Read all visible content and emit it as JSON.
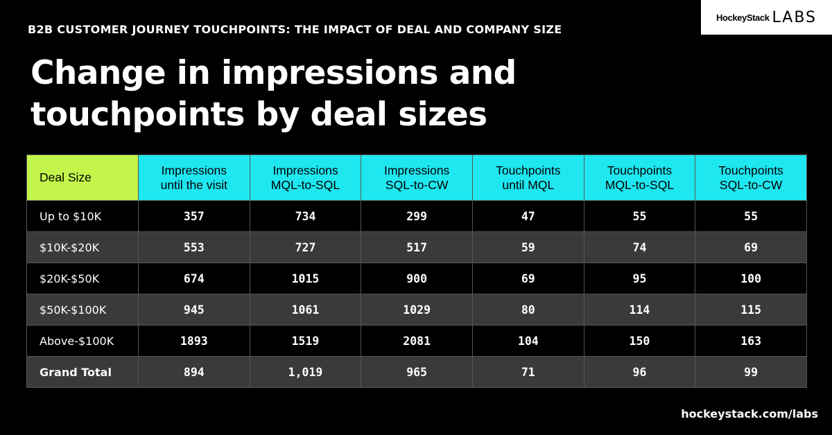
{
  "header": {
    "eyebrow": "B2B CUSTOMER JOURNEY TOUCHPOINTS: THE IMPACT OF DEAL AND COMPANY SIZE",
    "logo_brand": "HockeyStack",
    "logo_labs": "LABS",
    "title_line1": "Change in impressions and",
    "title_line2": "touchpoints by deal sizes"
  },
  "footer": {
    "url": "hockeystack.com/labs"
  },
  "colors": {
    "header_cyan": "#1fe7f0",
    "header_lime": "#c3f54a",
    "row_dark": "#000000",
    "row_gray": "#3a3a3a"
  },
  "chart_data": {
    "type": "table",
    "columns": [
      {
        "line1": "Deal Size",
        "line2": ""
      },
      {
        "line1": "Impressions",
        "line2": "until the visit"
      },
      {
        "line1": "Impressions",
        "line2": "MQL-to-SQL"
      },
      {
        "line1": "Impressions",
        "line2": "SQL-to-CW"
      },
      {
        "line1": "Touchpoints",
        "line2": "until MQL"
      },
      {
        "line1": "Touchpoints",
        "line2": "MQL-to-SQL"
      },
      {
        "line1": "Touchpoints",
        "line2": "SQL-to-CW"
      }
    ],
    "rows": [
      [
        "Up to $10K",
        "357",
        "734",
        "299",
        "47",
        "55",
        "55"
      ],
      [
        "$10K-$20K",
        "553",
        "727",
        "517",
        "59",
        "74",
        "69"
      ],
      [
        "$20K-$50K",
        "674",
        "1015",
        "900",
        "69",
        "95",
        "100"
      ],
      [
        "$50K-$100K",
        "945",
        "1061",
        "1029",
        "80",
        "114",
        "115"
      ],
      [
        "Above-$100K",
        "1893",
        "1519",
        "2081",
        "104",
        "150",
        "163"
      ],
      [
        "Grand Total",
        "894",
        "1,019",
        "965",
        "71",
        "96",
        "99"
      ]
    ]
  }
}
